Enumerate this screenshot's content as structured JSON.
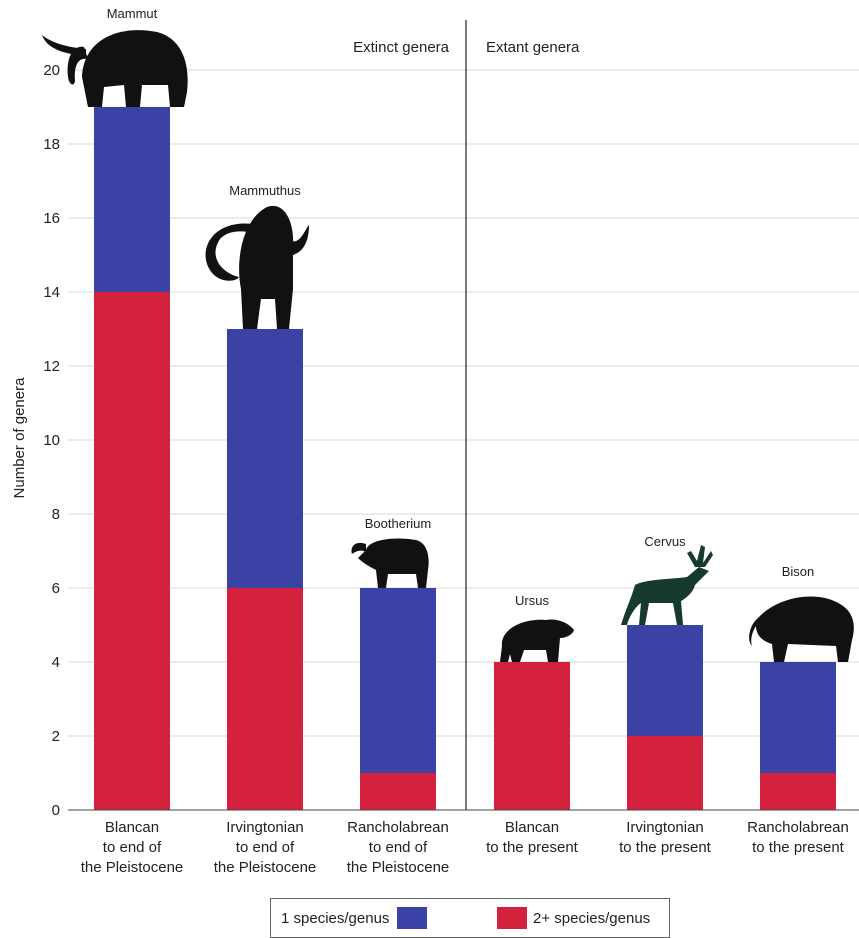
{
  "chart_data": {
    "type": "bar",
    "stacked": true,
    "ylabel": "Number of genera",
    "ylim": [
      0,
      20
    ],
    "yticks": [
      0,
      2,
      4,
      6,
      8,
      10,
      12,
      14,
      16,
      18,
      20
    ],
    "grid": true,
    "sections": [
      "Extinct genera",
      "Extant genera"
    ],
    "categories": [
      [
        "Blancan",
        "to end of",
        "the Pleistocene"
      ],
      [
        "Irvingtonian",
        "to end of",
        "the Pleistocene"
      ],
      [
        "Rancholabrean",
        "to end of",
        "the Pleistocene"
      ],
      [
        "Blancan",
        "to the present"
      ],
      [
        "Irvingtonian",
        "to the present"
      ],
      [
        "Rancholabrean",
        "to the present"
      ]
    ],
    "animals": [
      "Mammut",
      "Mammuthus",
      "Bootherium",
      "Ursus",
      "Cervus",
      "Bison"
    ],
    "series": [
      {
        "name": "2+ species/genus",
        "color": "#d4213d",
        "values": [
          14,
          6,
          1,
          4,
          2,
          1
        ]
      },
      {
        "name": "1 species/genus",
        "color": "#3a42a6",
        "values": [
          5,
          7,
          5,
          0,
          3,
          3
        ]
      }
    ],
    "legend": {
      "placement": "bottom",
      "order": [
        1,
        0
      ]
    }
  }
}
